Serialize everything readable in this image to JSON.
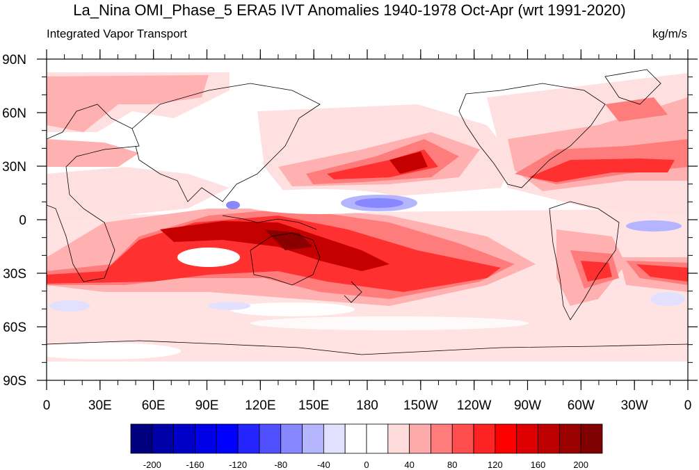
{
  "title": "La_Nina OMI_Phase_5 ERA5 IVT Anomalies 1940-1978 Oct-Apr (wrt 1991-2020)",
  "subtitle_left": "Integrated Vapor Transport",
  "subtitle_right": "kg/m/s",
  "lat_labels": [
    "90N",
    "60N",
    "30N",
    "0",
    "30S",
    "60S",
    "90S"
  ],
  "lon_labels": [
    "0",
    "30E",
    "60E",
    "90E",
    "120E",
    "150E",
    "180",
    "150W",
    "120W",
    "90W",
    "60W",
    "30W",
    "0"
  ],
  "colorbar": {
    "colors": [
      "#00007f",
      "#0000a8",
      "#0000c9",
      "#0000e8",
      "#0000ff",
      "#2525ff",
      "#5050ff",
      "#8787ff",
      "#b4b4ff",
      "#e1e1ff",
      "#ffffff",
      "#ffffff",
      "#ffdcdc",
      "#ffaaaa",
      "#ff7c7c",
      "#ff4e4e",
      "#ff2424",
      "#ff0000",
      "#de0000",
      "#bc0000",
      "#9a0000",
      "#7f0000"
    ],
    "labels": [
      "-200",
      "-160",
      "-120",
      "-80",
      "-40",
      "0",
      "40",
      "80",
      "120",
      "160",
      "200"
    ]
  },
  "colors": {
    "light_pink": "#ffe0e0",
    "pink": "#ffb0b0",
    "salmon": "#ff7c7c",
    "red": "#ff3030",
    "bright_red": "#ff0000",
    "dark_red": "#c40000",
    "maroon": "#8a0000",
    "light_blue": "#e1e1ff",
    "blue": "#8787ff"
  }
}
